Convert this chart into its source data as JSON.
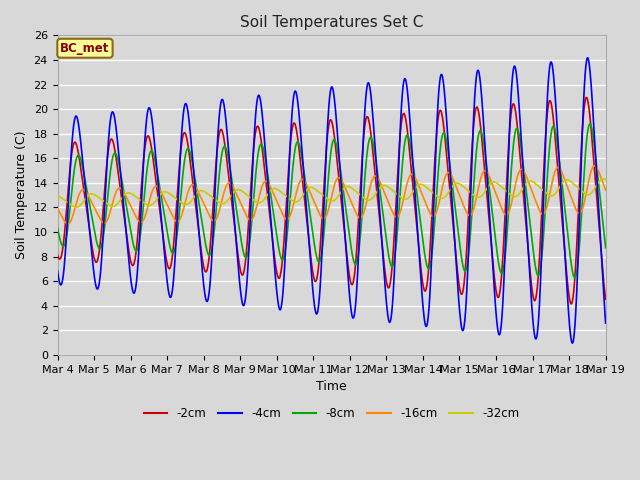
{
  "title": "Soil Temperatures Set C",
  "xlabel": "Time",
  "ylabel": "Soil Temperature (C)",
  "annotation": "BC_met",
  "ylim": [
    0,
    26
  ],
  "yticks": [
    0,
    2,
    4,
    6,
    8,
    10,
    12,
    14,
    16,
    18,
    20,
    22,
    24,
    26
  ],
  "xtick_labels": [
    "Mar 4",
    "Mar 5",
    "Mar 6",
    "Mar 7",
    "Mar 8",
    "Mar 9",
    "Mar 10",
    "Mar 11",
    "Mar 12",
    "Mar 13",
    "Mar 14",
    "Mar 15",
    "Mar 16",
    "Mar 17",
    "Mar 18",
    "Mar 19"
  ],
  "series": {
    "-2cm": {
      "color": "#cc0000",
      "lw": 1.2
    },
    "-4cm": {
      "color": "#0000ff",
      "lw": 1.2
    },
    "-8cm": {
      "color": "#00aa00",
      "lw": 1.2
    },
    "-16cm": {
      "color": "#ff8800",
      "lw": 1.2
    },
    "-32cm": {
      "color": "#cccc00",
      "lw": 1.2
    }
  },
  "legend_order": [
    "-2cm",
    "-4cm",
    "-8cm",
    "-16cm",
    "-32cm"
  ],
  "background_color": "#d8d8d8",
  "plot_bg_color": "#d8d8d8",
  "grid_color": "#ffffff",
  "n_points": 1500,
  "duration_days": 15,
  "mean_2cm": 12.5,
  "mean_4cm": 12.5,
  "mean_8cm": 12.5,
  "mean_16cm": 12.0,
  "mean_32cm": 12.5,
  "amp_2cm_base": 4.5,
  "amp_4cm_base": 6.5,
  "amp_8cm_base": 3.5,
  "amp_16cm_base": 1.3,
  "amp_32cm_base": 0.5,
  "amp_growth": 0.25,
  "phase_2cm": 0.1,
  "phase_4cm": 0.3,
  "phase_8cm": 0.7,
  "phase_16cm": 1.5,
  "phase_32cm": 3.0,
  "trend_2cm": 0.0,
  "trend_4cm": 0.0,
  "trend_8cm": 0.0,
  "trend_16cm": 0.1,
  "trend_32cm": 0.08
}
